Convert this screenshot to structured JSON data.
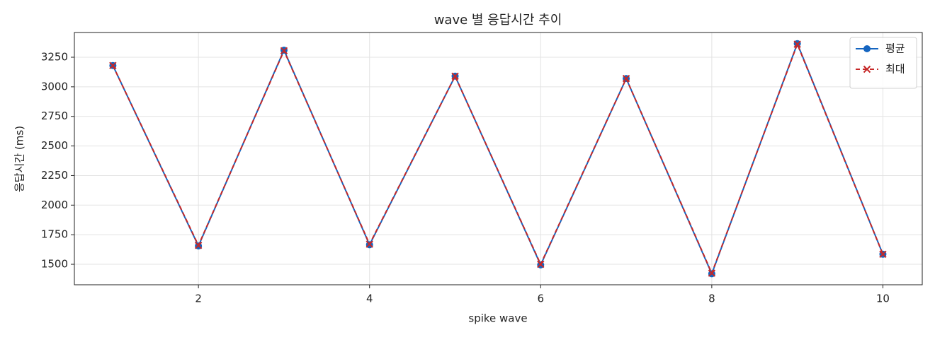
{
  "chart_data": {
    "type": "line",
    "title": "wave 별 응답시간 추이",
    "xlabel": "spike wave",
    "ylabel": "응답시간 (ms)",
    "x": [
      1,
      2,
      3,
      4,
      5,
      6,
      7,
      8,
      9,
      10
    ],
    "series": [
      {
        "name": "평균",
        "color": "#1565c0",
        "marker": "o",
        "linestyle": "solid",
        "values": [
          3180,
          1655,
          3310,
          1665,
          3090,
          1495,
          3070,
          1420,
          3365,
          1585
        ]
      },
      {
        "name": "최대",
        "color": "#c62828",
        "marker": "x",
        "linestyle": "dashed",
        "values": [
          3180,
          1660,
          3305,
          1670,
          3090,
          1500,
          3070,
          1425,
          3360,
          1585
        ]
      }
    ],
    "xlim": [
      0.55,
      10.46
    ],
    "ylim": [
      1327,
      3459
    ],
    "xticks": [
      2,
      4,
      6,
      8,
      10
    ],
    "yticks": [
      1500,
      1750,
      2000,
      2250,
      2500,
      2750,
      3000,
      3250
    ],
    "grid": true,
    "legend": "upper right"
  }
}
